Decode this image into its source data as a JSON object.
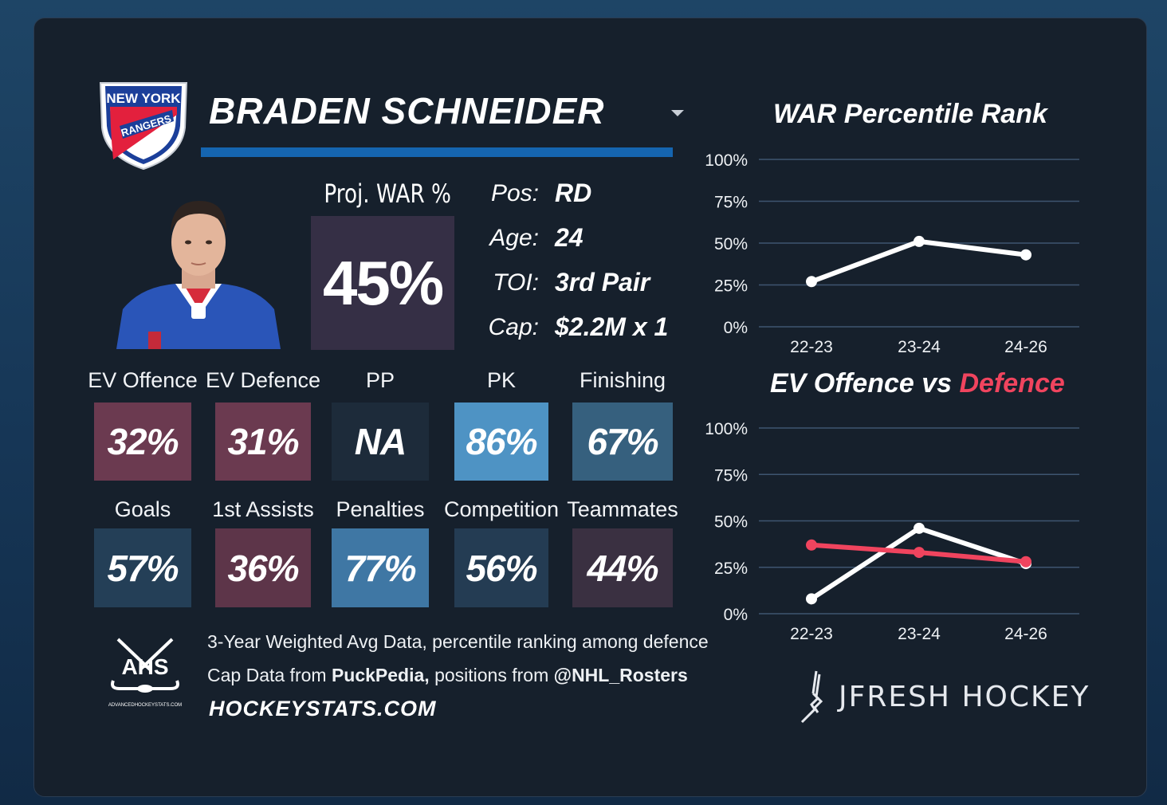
{
  "player": {
    "team_logo_lines": [
      "NEW YORK",
      "RANGERS"
    ],
    "name": "BRADEN SCHNEIDER",
    "proj_war_label": "Proj. WAR %",
    "proj_war_value": "45%",
    "info": [
      {
        "label": "Pos:",
        "value": "RD"
      },
      {
        "label": "Age:",
        "value": "24"
      },
      {
        "label": "TOI:",
        "value": "3rd Pair"
      },
      {
        "label": "Cap:",
        "value": "$2.2M x 1"
      }
    ]
  },
  "stats_row1": [
    {
      "label": "EV Offence",
      "value": "32%",
      "color": "#6b3a50"
    },
    {
      "label": "EV Defence",
      "value": "31%",
      "color": "#6b3a50"
    },
    {
      "label": "PP",
      "value": "NA",
      "color": "#1d2b3a"
    },
    {
      "label": "PK",
      "value": "86%",
      "color": "#4e93c4"
    },
    {
      "label": "Finishing",
      "value": "67%",
      "color": "#36607e"
    }
  ],
  "stats_row2": [
    {
      "label": "Goals",
      "value": "57%",
      "color": "#243f57"
    },
    {
      "label": "1st Assists",
      "value": "36%",
      "color": "#5d3549"
    },
    {
      "label": "Penalties",
      "value": "77%",
      "color": "#3f77a4"
    },
    {
      "label": "Competition",
      "value": "56%",
      "color": "#243c53"
    },
    {
      "label": "Teammates",
      "value": "44%",
      "color": "#3a3041"
    }
  ],
  "footer": {
    "ahs_text": "AHS",
    "ahs_sub": "ADVANCEDHOCKEYSTATS.COM",
    "line1": "3-Year Weighted Avg Data, percentile ranking among defence",
    "line2_a": "Cap Data from ",
    "line2_b": "PuckPedia,",
    "line2_c": " positions from ",
    "line2_d": "@NHL_Rosters",
    "site": "HOCKEYSTATS.COM",
    "brand": "JFRESH HOCKEY"
  },
  "colors": {
    "accent_blue": "#1565b0",
    "defence_red": "#f0445e",
    "offence_white": "#ffffff"
  },
  "chart_data": [
    {
      "type": "line",
      "title": "WAR Percentile Rank",
      "categories": [
        "22-23",
        "23-24",
        "24-26"
      ],
      "series": [
        {
          "values": [
            27,
            51,
            43
          ]
        }
      ],
      "ylim": [
        0,
        100
      ],
      "yticks": [
        "0%",
        "25%",
        "50%",
        "75%",
        "100%"
      ],
      "grid": true
    },
    {
      "type": "line",
      "title_parts": [
        "EV Offence vs ",
        "Defence"
      ],
      "categories": [
        "22-23",
        "23-24",
        "24-26"
      ],
      "series": [
        {
          "color": "#ffffff",
          "values": [
            8,
            46,
            27
          ]
        },
        {
          "color": "#f0445e",
          "values": [
            37,
            33,
            28
          ]
        }
      ],
      "ylim": [
        0,
        100
      ],
      "yticks": [
        "0%",
        "25%",
        "50%",
        "75%",
        "100%"
      ],
      "grid": true
    }
  ]
}
